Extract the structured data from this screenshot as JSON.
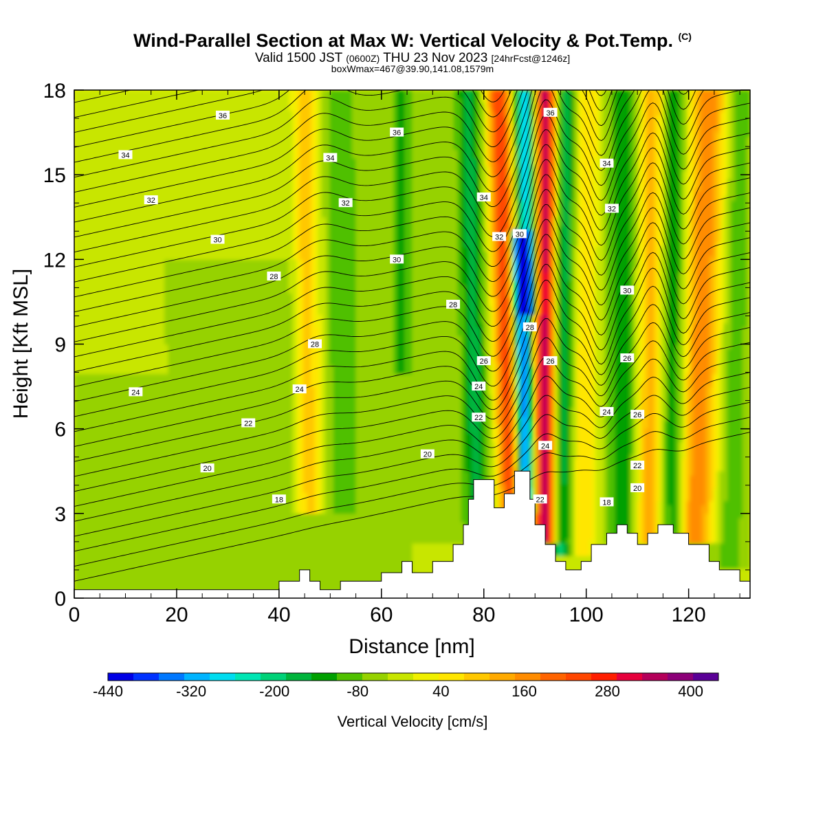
{
  "header": {
    "title": "Wind-Parallel Section at Max W: Vertical Velocity & Pot.Temp.",
    "copyright": "(C)",
    "valid_prefix": "Valid 1500 JST",
    "valid_z": "(0600Z)",
    "valid_date": "THU 23 Nov 2023",
    "forecast": "[24hrFcst@1246z]",
    "box_info": "boxWmax=467@39.90,141.08,1579m"
  },
  "chart_data": {
    "type": "heatmap",
    "xlabel": "Distance [nm]",
    "ylabel": "Height [Kft MSL]",
    "xlim": [
      0,
      132
    ],
    "ylim": [
      0,
      18
    ],
    "x_ticks": [
      0,
      20,
      40,
      60,
      80,
      100,
      120
    ],
    "y_ticks": [
      0,
      3,
      6,
      9,
      12,
      15,
      18
    ],
    "colorbar": {
      "label": "Vertical Velocity [cm/s]",
      "min": -440,
      "max": 440,
      "step": 40,
      "tick_labels": [
        -440,
        -320,
        -200,
        -80,
        40,
        160,
        280,
        400
      ],
      "colors": [
        "#0000e6",
        "#0032ff",
        "#0078ff",
        "#00b4ff",
        "#00dcf0",
        "#00e6b4",
        "#00d278",
        "#00b43c",
        "#00a000",
        "#50c000",
        "#96d200",
        "#c8e600",
        "#f0f000",
        "#ffe600",
        "#ffc800",
        "#ffaa00",
        "#ff8c00",
        "#ff6400",
        "#ff4600",
        "#ff1e00",
        "#e6003c",
        "#b4005a",
        "#8c0078",
        "#5a0096"
      ]
    },
    "terrain_kft": [
      [
        0,
        0.3
      ],
      [
        40,
        0.3
      ],
      [
        40,
        0.6
      ],
      [
        44,
        0.6
      ],
      [
        44,
        1.0
      ],
      [
        46,
        1.0
      ],
      [
        46,
        0.6
      ],
      [
        48,
        0.6
      ],
      [
        48,
        0.3
      ],
      [
        52,
        0.3
      ],
      [
        52,
        0.6
      ],
      [
        60,
        0.6
      ],
      [
        60,
        0.9
      ],
      [
        64,
        0.9
      ],
      [
        64,
        1.3
      ],
      [
        66,
        1.3
      ],
      [
        66,
        0.9
      ],
      [
        70,
        0.9
      ],
      [
        70,
        1.3
      ],
      [
        74,
        1.3
      ],
      [
        74,
        1.9
      ],
      [
        76,
        1.9
      ],
      [
        76,
        2.6
      ],
      [
        77,
        2.6
      ],
      [
        77,
        3.5
      ],
      [
        78,
        3.5
      ],
      [
        78,
        4.2
      ],
      [
        82,
        4.2
      ],
      [
        82,
        3.2
      ],
      [
        84,
        3.2
      ],
      [
        84,
        3.7
      ],
      [
        86,
        3.7
      ],
      [
        86,
        4.5
      ],
      [
        89,
        4.5
      ],
      [
        89,
        3.5
      ],
      [
        90,
        3.5
      ],
      [
        90,
        2.6
      ],
      [
        92,
        2.6
      ],
      [
        92,
        1.9
      ],
      [
        94,
        1.9
      ],
      [
        94,
        1.3
      ],
      [
        96,
        1.3
      ],
      [
        96,
        1.0
      ],
      [
        99,
        1.0
      ],
      [
        99,
        1.3
      ],
      [
        101,
        1.3
      ],
      [
        101,
        1.9
      ],
      [
        104,
        1.9
      ],
      [
        104,
        2.3
      ],
      [
        106,
        2.3
      ],
      [
        106,
        2.6
      ],
      [
        108,
        2.6
      ],
      [
        108,
        2.3
      ],
      [
        110,
        2.3
      ],
      [
        110,
        1.9
      ],
      [
        112,
        1.9
      ],
      [
        112,
        2.3
      ],
      [
        114,
        2.3
      ],
      [
        114,
        2.6
      ],
      [
        117,
        2.6
      ],
      [
        117,
        2.3
      ],
      [
        120,
        2.3
      ],
      [
        120,
        1.9
      ],
      [
        124,
        1.9
      ],
      [
        124,
        1.3
      ],
      [
        126,
        1.3
      ],
      [
        126,
        1.0
      ],
      [
        130,
        1.0
      ],
      [
        130,
        0.6
      ],
      [
        132,
        0.6
      ]
    ],
    "theta_levels_labeled": [
      {
        "text": "36",
        "x": 29,
        "y": 17.1
      },
      {
        "text": "36",
        "x": 63,
        "y": 16.5
      },
      {
        "text": "36",
        "x": 93,
        "y": 17.2
      },
      {
        "text": "34",
        "x": 10,
        "y": 15.7
      },
      {
        "text": "34",
        "x": 50,
        "y": 15.6
      },
      {
        "text": "34",
        "x": 80,
        "y": 14.2
      },
      {
        "text": "34",
        "x": 104,
        "y": 15.4
      },
      {
        "text": "32",
        "x": 15,
        "y": 14.1
      },
      {
        "text": "32",
        "x": 53,
        "y": 14.0
      },
      {
        "text": "32",
        "x": 83,
        "y": 12.8
      },
      {
        "text": "32",
        "x": 105,
        "y": 13.8
      },
      {
        "text": "30",
        "x": 28,
        "y": 12.7
      },
      {
        "text": "30",
        "x": 63,
        "y": 12.0
      },
      {
        "text": "30",
        "x": 87,
        "y": 12.9
      },
      {
        "text": "30",
        "x": 108,
        "y": 10.9
      },
      {
        "text": "28",
        "x": 39,
        "y": 11.4
      },
      {
        "text": "28",
        "x": 74,
        "y": 10.4
      },
      {
        "text": "28",
        "x": 89,
        "y": 9.6
      },
      {
        "text": "28",
        "x": 47,
        "y": 9.0
      },
      {
        "text": "26",
        "x": 80,
        "y": 8.4
      },
      {
        "text": "26",
        "x": 93,
        "y": 8.4
      },
      {
        "text": "26",
        "x": 108,
        "y": 8.5
      },
      {
        "text": "26",
        "x": 110,
        "y": 6.5
      },
      {
        "text": "24",
        "x": 12,
        "y": 7.3
      },
      {
        "text": "24",
        "x": 44,
        "y": 7.4
      },
      {
        "text": "24",
        "x": 79,
        "y": 7.5
      },
      {
        "text": "24",
        "x": 104,
        "y": 6.6
      },
      {
        "text": "24",
        "x": 92,
        "y": 5.4
      },
      {
        "text": "22",
        "x": 34,
        "y": 6.2
      },
      {
        "text": "22",
        "x": 79,
        "y": 6.4
      },
      {
        "text": "22",
        "x": 110,
        "y": 4.7
      },
      {
        "text": "22",
        "x": 91,
        "y": 3.5
      },
      {
        "text": "20",
        "x": 26,
        "y": 4.6
      },
      {
        "text": "20",
        "x": 69,
        "y": 5.1
      },
      {
        "text": "20",
        "x": 110,
        "y": 3.9
      },
      {
        "text": "18",
        "x": 40,
        "y": 3.5
      },
      {
        "text": "18",
        "x": 104,
        "y": 3.4
      }
    ]
  }
}
